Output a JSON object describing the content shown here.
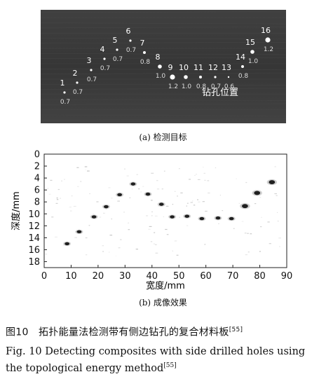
{
  "photo": {
    "holes": [
      {
        "number": "1",
        "diameter": "0.7"
      },
      {
        "number": "2",
        "diameter": "0.7"
      },
      {
        "number": "3",
        "diameter": "0.7"
      },
      {
        "number": "4",
        "diameter": "0.7"
      },
      {
        "number": "5",
        "diameter": "0.7"
      },
      {
        "number": "6",
        "diameter": "0.7"
      },
      {
        "number": "7",
        "diameter": "0.8"
      },
      {
        "number": "8",
        "diameter": "1.0"
      },
      {
        "number": "9",
        "diameter": "1.2"
      },
      {
        "number": "10",
        "diameter": "1.0"
      },
      {
        "number": "11",
        "diameter": "0.8"
      },
      {
        "number": "12",
        "diameter": "0.7"
      },
      {
        "number": "13",
        "diameter": "0.6"
      },
      {
        "number": "14",
        "diameter": "0.8"
      },
      {
        "number": "15",
        "diameter": "1.0"
      },
      {
        "number": "16",
        "diameter": "1.2"
      }
    ],
    "label": "钻孔位置"
  },
  "caption_a": "(a) 检测目标",
  "caption_b": "(b) 成像效果",
  "chart_data": {
    "type": "scatter",
    "xlabel": "宽度/mm",
    "ylabel": "深度/mm",
    "xlim": [
      0,
      90
    ],
    "ylim": [
      0,
      19
    ],
    "y_inverted": true,
    "xticks": [
      "0",
      "10",
      "20",
      "30",
      "40",
      "50",
      "60",
      "70",
      "80",
      "90"
    ],
    "yticks": [
      "0",
      "2",
      "4",
      "6",
      "8",
      "10",
      "12",
      "14",
      "16",
      "18"
    ],
    "points": [
      {
        "x": 8.5,
        "y": 15.0
      },
      {
        "x": 13.0,
        "y": 13.0
      },
      {
        "x": 18.5,
        "y": 10.5
      },
      {
        "x": 23.0,
        "y": 8.8
      },
      {
        "x": 28.0,
        "y": 6.8
      },
      {
        "x": 33.0,
        "y": 5.0
      },
      {
        "x": 38.5,
        "y": 6.7
      },
      {
        "x": 43.5,
        "y": 8.4
      },
      {
        "x": 47.5,
        "y": 10.5
      },
      {
        "x": 53.0,
        "y": 10.4
      },
      {
        "x": 58.5,
        "y": 10.8
      },
      {
        "x": 64.5,
        "y": 10.7
      },
      {
        "x": 69.5,
        "y": 10.8
      },
      {
        "x": 74.5,
        "y": 8.7
      },
      {
        "x": 79.0,
        "y": 6.5
      },
      {
        "x": 84.5,
        "y": 4.7
      }
    ]
  },
  "figure_caption_zh": {
    "label": "图10",
    "text": "拓扑能量法检测带有侧边钻孔的复合材料板",
    "ref": "[55]"
  },
  "figure_caption_en": {
    "text": "Fig. 10   Detecting composites with side drilled holes using the topological energy method",
    "ref": "[55]"
  }
}
